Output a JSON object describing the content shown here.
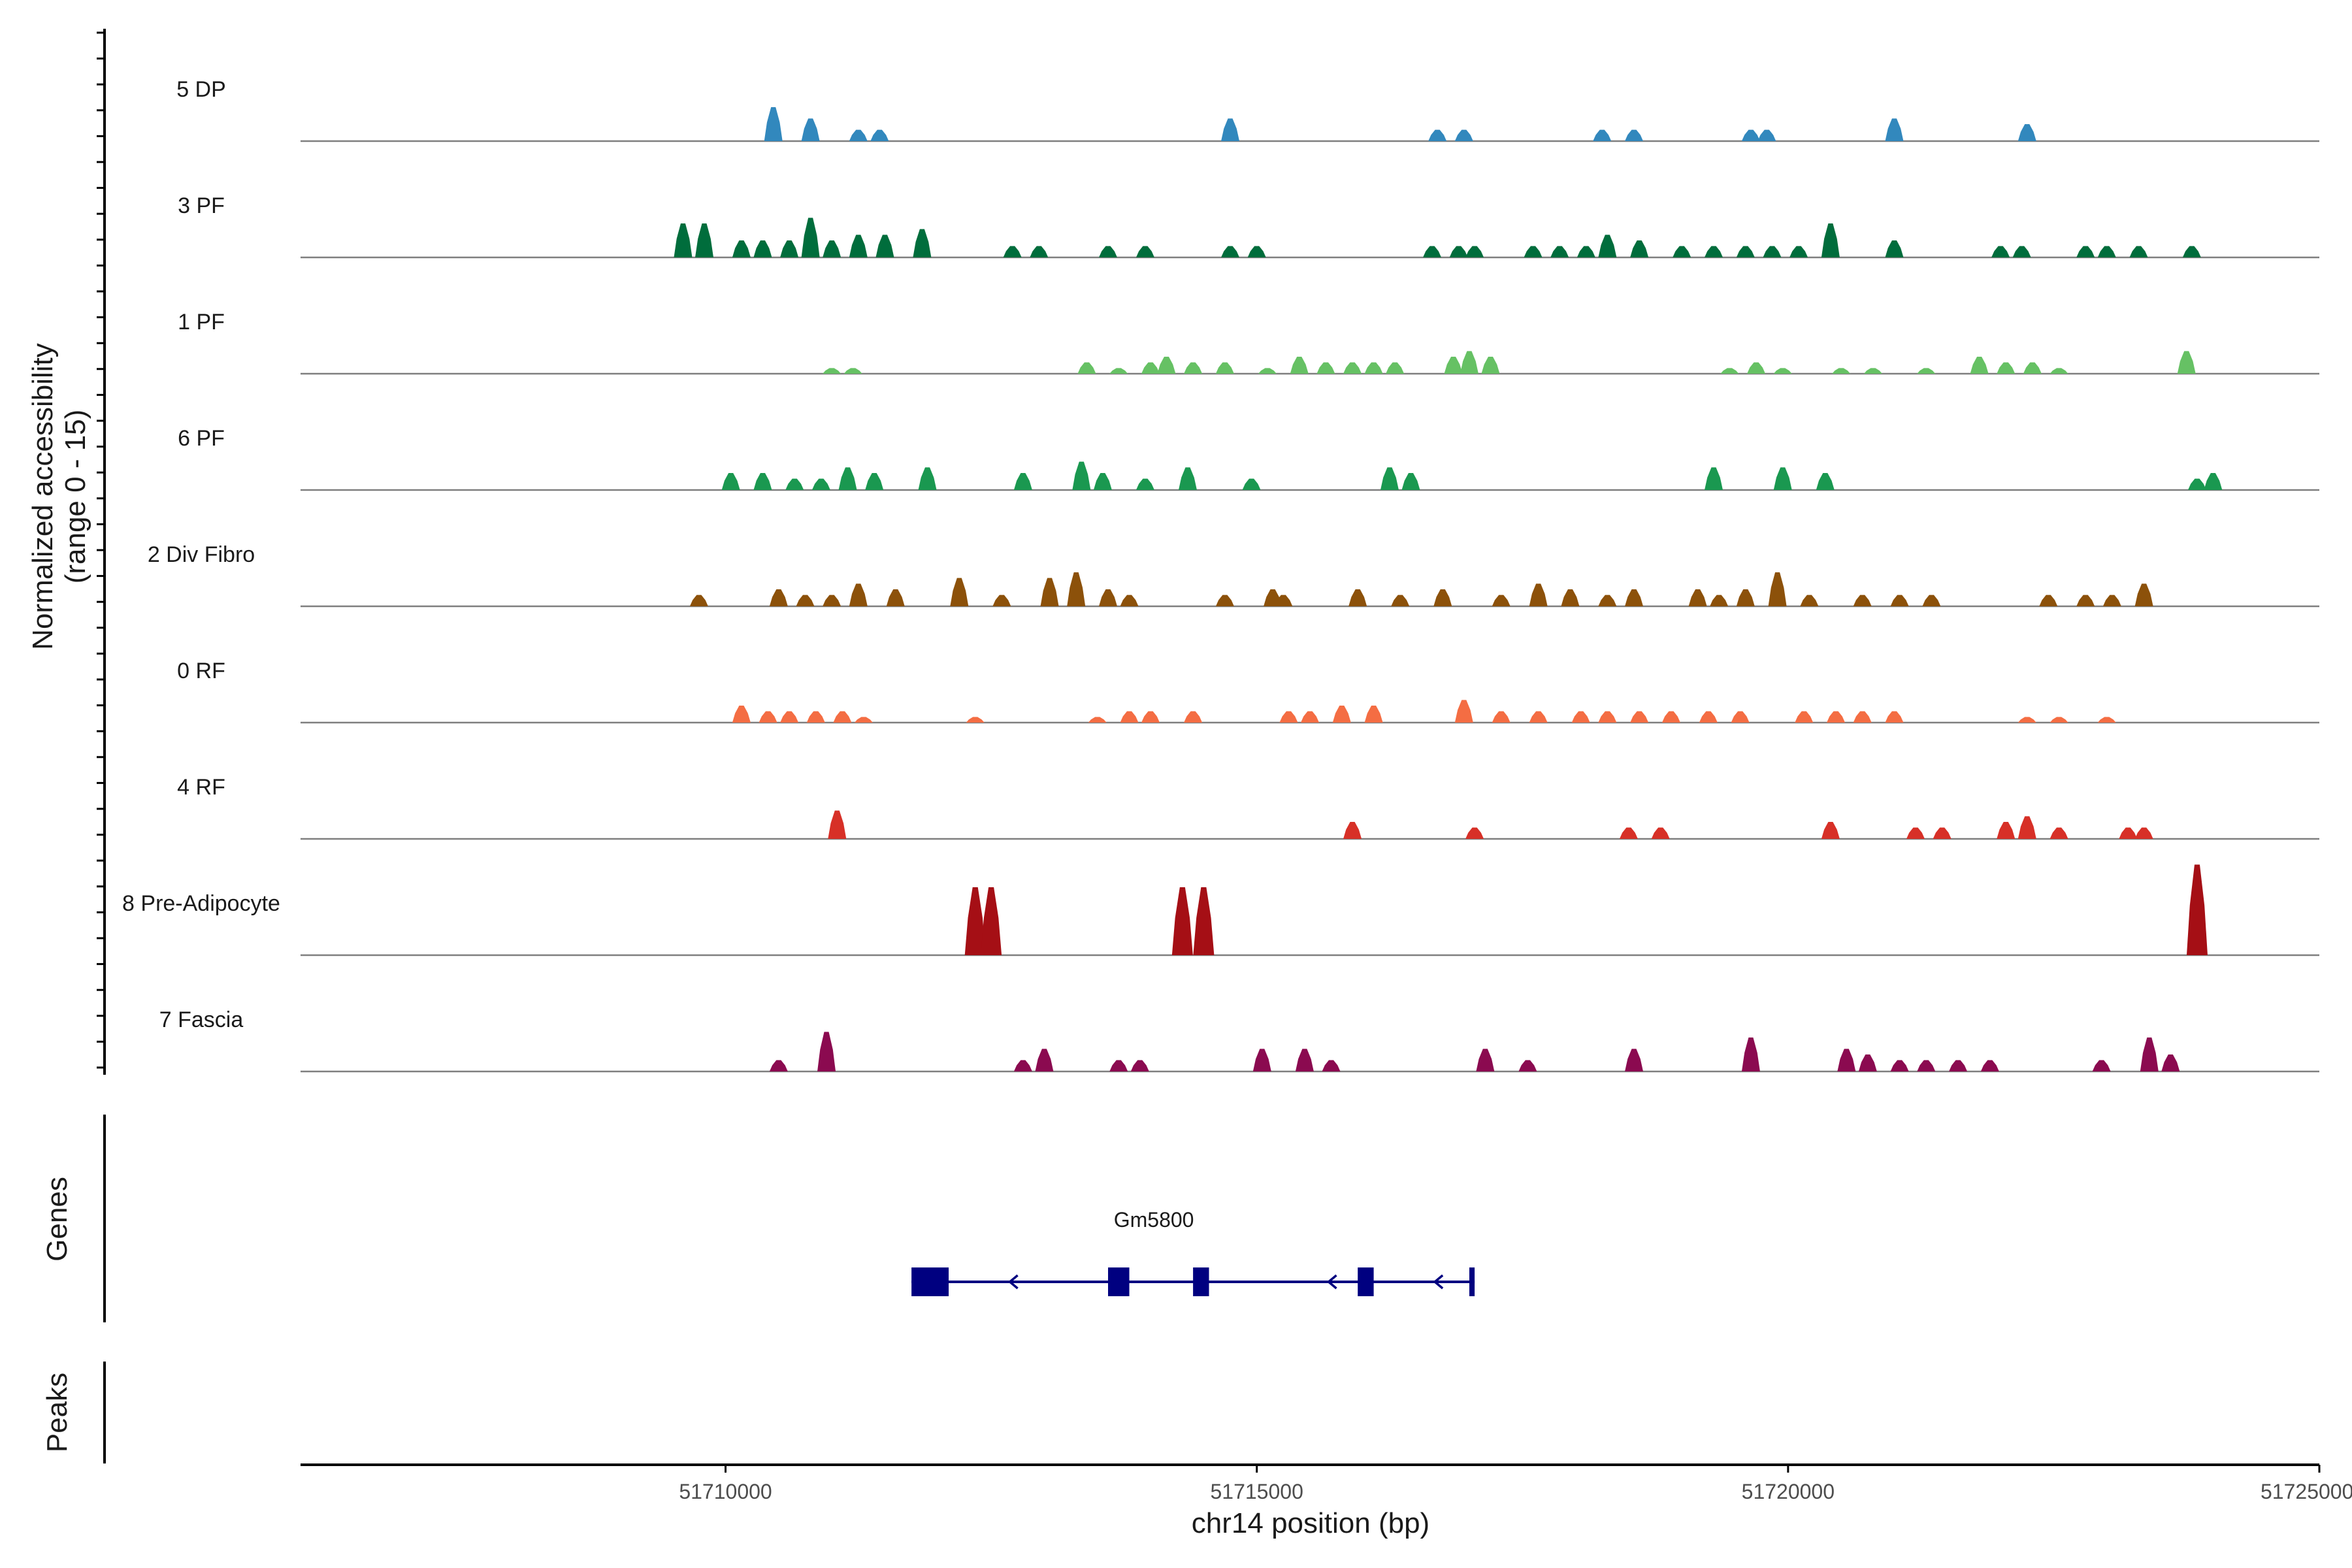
{
  "chart_data": {
    "type": "genome-browser-coverage",
    "chromosome": "chr14",
    "xlabel": "chr14 position (bp)",
    "xlim": [
      51706000,
      51725000
    ],
    "xticks": [
      51710000,
      51715000,
      51720000,
      51725000
    ],
    "xtick_labels": [
      "51710000",
      "51715000",
      "51720000",
      "51725000"
    ],
    "ylabel_line1": "Normalized accessibility",
    "ylabel_line2": "(range 0 - 15)",
    "ylim": [
      0,
      15
    ],
    "panel_labels": {
      "genes": "Genes",
      "peaks": "Peaks"
    },
    "tracks": [
      {
        "name": "5 DP",
        "color": "#3288bd",
        "peaks": [
          [
            51710450,
            6
          ],
          [
            51710800,
            4
          ],
          [
            51711250,
            2
          ],
          [
            51711450,
            2
          ],
          [
            51714750,
            4
          ],
          [
            51716700,
            2
          ],
          [
            51716950,
            2
          ],
          [
            51718250,
            2
          ],
          [
            51718550,
            2
          ],
          [
            51719650,
            2
          ],
          [
            51719800,
            2
          ],
          [
            51721000,
            4
          ],
          [
            51722250,
            3
          ]
        ]
      },
      {
        "name": "3 PF",
        "color": "#006d3c",
        "peaks": [
          [
            51709600,
            6
          ],
          [
            51709800,
            6
          ],
          [
            51710150,
            3
          ],
          [
            51710350,
            3
          ],
          [
            51710600,
            3
          ],
          [
            51710800,
            7
          ],
          [
            51711000,
            3
          ],
          [
            51711250,
            4
          ],
          [
            51711500,
            4
          ],
          [
            51711850,
            5
          ],
          [
            51712700,
            2
          ],
          [
            51712950,
            2
          ],
          [
            51713600,
            2
          ],
          [
            51713950,
            2
          ],
          [
            51714750,
            2
          ],
          [
            51715000,
            2
          ],
          [
            51716650,
            2
          ],
          [
            51716900,
            2
          ],
          [
            51717050,
            2
          ],
          [
            51717600,
            2
          ],
          [
            51717850,
            2
          ],
          [
            51718100,
            2
          ],
          [
            51718300,
            4
          ],
          [
            51718600,
            3
          ],
          [
            51719000,
            2
          ],
          [
            51719300,
            2
          ],
          [
            51719600,
            2
          ],
          [
            51719850,
            2
          ],
          [
            51720100,
            2
          ],
          [
            51720400,
            6
          ],
          [
            51721000,
            3
          ],
          [
            51722000,
            2
          ],
          [
            51722200,
            2
          ],
          [
            51722800,
            2
          ],
          [
            51723000,
            2
          ],
          [
            51723300,
            2
          ],
          [
            51723800,
            2
          ]
        ]
      },
      {
        "name": "1 PF",
        "color": "#66c164",
        "peaks": [
          [
            51711000,
            1
          ],
          [
            51711200,
            1
          ],
          [
            51713400,
            2
          ],
          [
            51713700,
            1
          ],
          [
            51714000,
            2
          ],
          [
            51714150,
            3
          ],
          [
            51714400,
            2
          ],
          [
            51714700,
            2
          ],
          [
            51715100,
            1
          ],
          [
            51715400,
            3
          ],
          [
            51715650,
            2
          ],
          [
            51715900,
            2
          ],
          [
            51716100,
            2
          ],
          [
            51716300,
            2
          ],
          [
            51716850,
            3
          ],
          [
            51717000,
            4
          ],
          [
            51717200,
            3
          ],
          [
            51719450,
            1
          ],
          [
            51719700,
            2
          ],
          [
            51719950,
            1
          ],
          [
            51720500,
            1
          ],
          [
            51720800,
            1
          ],
          [
            51721300,
            1
          ],
          [
            51721800,
            3
          ],
          [
            51722050,
            2
          ],
          [
            51722300,
            2
          ],
          [
            51722550,
            1
          ],
          [
            51723750,
            4
          ]
        ]
      },
      {
        "name": "6 PF",
        "color": "#1a9850",
        "peaks": [
          [
            51710050,
            3
          ],
          [
            51710350,
            3
          ],
          [
            51710650,
            2
          ],
          [
            51710900,
            2
          ],
          [
            51711150,
            4
          ],
          [
            51711400,
            3
          ],
          [
            51711900,
            4
          ],
          [
            51712800,
            3
          ],
          [
            51713350,
            5
          ],
          [
            51713550,
            3
          ],
          [
            51713950,
            2
          ],
          [
            51714350,
            4
          ],
          [
            51714950,
            2
          ],
          [
            51716250,
            4
          ],
          [
            51716450,
            3
          ],
          [
            51719300,
            4
          ],
          [
            51719950,
            4
          ],
          [
            51720350,
            3
          ],
          [
            51723850,
            2
          ],
          [
            51724000,
            3
          ]
        ]
      },
      {
        "name": "2 Div Fibro",
        "color": "#8c510a",
        "peaks": [
          [
            51709750,
            2
          ],
          [
            51710500,
            3
          ],
          [
            51710750,
            2
          ],
          [
            51711000,
            2
          ],
          [
            51711250,
            4
          ],
          [
            51711600,
            3
          ],
          [
            51712200,
            5
          ],
          [
            51712600,
            2
          ],
          [
            51713050,
            5
          ],
          [
            51713300,
            6
          ],
          [
            51713600,
            3
          ],
          [
            51713800,
            2
          ],
          [
            51714700,
            2
          ],
          [
            51715150,
            3
          ],
          [
            51715250,
            2
          ],
          [
            51715950,
            3
          ],
          [
            51716350,
            2
          ],
          [
            51716750,
            3
          ],
          [
            51717300,
            2
          ],
          [
            51717650,
            4
          ],
          [
            51717950,
            3
          ],
          [
            51718300,
            2
          ],
          [
            51718550,
            3
          ],
          [
            51719150,
            3
          ],
          [
            51719350,
            2
          ],
          [
            51719600,
            3
          ],
          [
            51719900,
            6
          ],
          [
            51720200,
            2
          ],
          [
            51720700,
            2
          ],
          [
            51721050,
            2
          ],
          [
            51721350,
            2
          ],
          [
            51722450,
            2
          ],
          [
            51722800,
            2
          ],
          [
            51723050,
            2
          ],
          [
            51723350,
            4
          ]
        ]
      },
      {
        "name": "0 RF",
        "color": "#f46d43",
        "peaks": [
          [
            51710150,
            3
          ],
          [
            51710400,
            2
          ],
          [
            51710600,
            2
          ],
          [
            51710850,
            2
          ],
          [
            51711100,
            2
          ],
          [
            51711300,
            1
          ],
          [
            51712350,
            1
          ],
          [
            51713500,
            1
          ],
          [
            51713800,
            2
          ],
          [
            51714000,
            2
          ],
          [
            51714400,
            2
          ],
          [
            51715300,
            2
          ],
          [
            51715500,
            2
          ],
          [
            51715800,
            3
          ],
          [
            51716100,
            3
          ],
          [
            51716950,
            4
          ],
          [
            51717300,
            2
          ],
          [
            51717650,
            2
          ],
          [
            51718050,
            2
          ],
          [
            51718300,
            2
          ],
          [
            51718600,
            2
          ],
          [
            51718900,
            2
          ],
          [
            51719250,
            2
          ],
          [
            51719550,
            2
          ],
          [
            51720150,
            2
          ],
          [
            51720450,
            2
          ],
          [
            51720700,
            2
          ],
          [
            51721000,
            2
          ],
          [
            51722250,
            1
          ],
          [
            51722550,
            1
          ],
          [
            51723000,
            1
          ]
        ]
      },
      {
        "name": "4 RF",
        "color": "#d73027",
        "peaks": [
          [
            51711050,
            5
          ],
          [
            51715900,
            3
          ],
          [
            51717050,
            2
          ],
          [
            51718500,
            2
          ],
          [
            51718800,
            2
          ],
          [
            51720400,
            3
          ],
          [
            51721200,
            2
          ],
          [
            51721450,
            2
          ],
          [
            51722050,
            3
          ],
          [
            51722250,
            4
          ],
          [
            51722550,
            2
          ],
          [
            51723200,
            2
          ],
          [
            51723350,
            2
          ]
        ]
      },
      {
        "name": "8 Pre-Adipocyte",
        "color": "#a50f15",
        "peaks": [
          [
            51712350,
            12
          ],
          [
            51712500,
            12
          ],
          [
            51714300,
            12
          ],
          [
            51714500,
            12
          ],
          [
            51723850,
            16
          ]
        ]
      },
      {
        "name": "7 Fascia",
        "color": "#8b0a50",
        "peaks": [
          [
            51710500,
            2
          ],
          [
            51710950,
            7
          ],
          [
            51712800,
            2
          ],
          [
            51713000,
            4
          ],
          [
            51713700,
            2
          ],
          [
            51713900,
            2
          ],
          [
            51715050,
            4
          ],
          [
            51715450,
            4
          ],
          [
            51715700,
            2
          ],
          [
            51717150,
            4
          ],
          [
            51717550,
            2
          ],
          [
            51718550,
            4
          ],
          [
            51719650,
            6
          ],
          [
            51720550,
            4
          ],
          [
            51720750,
            3
          ],
          [
            51721050,
            2
          ],
          [
            51721300,
            2
          ],
          [
            51721600,
            2
          ],
          [
            51721900,
            2
          ],
          [
            51722950,
            2
          ],
          [
            51723400,
            6
          ],
          [
            51723600,
            3
          ]
        ]
      }
    ],
    "gene": {
      "name": "Gm5800",
      "start": 51711750,
      "end": 51717050,
      "strand": "-",
      "exons": [
        [
          51711750,
          51712100
        ],
        [
          51713600,
          51713800
        ],
        [
          51714400,
          51714550
        ],
        [
          51715950,
          51716100
        ],
        [
          51717000,
          51717050
        ]
      ]
    },
    "track_colors_note": "series colors above"
  }
}
